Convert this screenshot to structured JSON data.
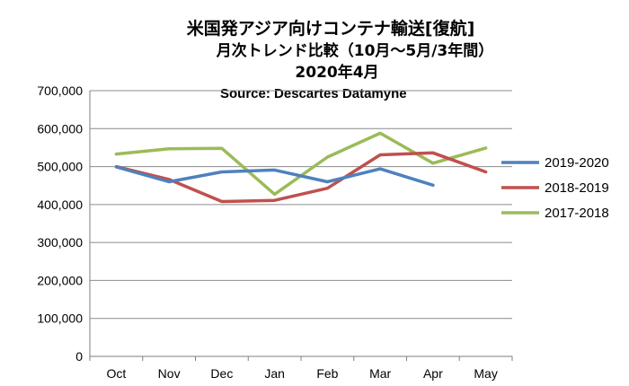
{
  "chart_data": {
    "type": "line",
    "title": "米国発アジア向けコンテナ輸送[復航]",
    "subtitle": "月次トレンド比較（10月～5月/3年間）",
    "date_line": "2020年4月",
    "source": "Source:  Descartes Datamyne",
    "categories": [
      "Oct",
      "Nov",
      "Dec",
      "Jan",
      "Feb",
      "Mar",
      "Apr",
      "May"
    ],
    "ylim": [
      0,
      700000
    ],
    "yticks": [
      0,
      100000,
      200000,
      300000,
      400000,
      500000,
      600000,
      700000
    ],
    "ytick_labels": [
      "0",
      "100,000",
      "200,000",
      "300,000",
      "400,000",
      "500,000",
      "600,000",
      "700,000"
    ],
    "grid": true,
    "legend_position": "right",
    "series": [
      {
        "name": "2019-2020",
        "color": "#4f81bd",
        "values": [
          499000,
          460000,
          486000,
          491000,
          460000,
          494000,
          451000,
          null
        ]
      },
      {
        "name": "2018-2019",
        "color": "#c0504d",
        "values": [
          500000,
          466000,
          408000,
          411000,
          443000,
          531000,
          536000,
          486000
        ]
      },
      {
        "name": "2017-2018",
        "color": "#9bbb59",
        "values": [
          533000,
          547000,
          548000,
          427000,
          525000,
          588000,
          509000,
          549000
        ]
      }
    ]
  }
}
